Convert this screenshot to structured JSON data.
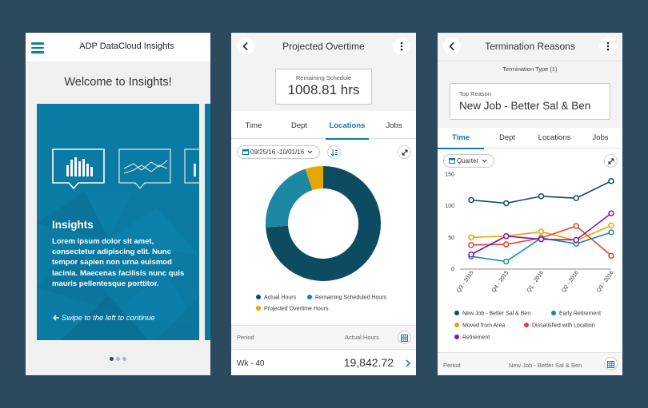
{
  "colors": {
    "background": "#2b4a5e",
    "brand": "#0b7ba4",
    "dark_teal": "#0d4b61",
    "mid_teal": "#1b87a3",
    "amber": "#e8a400",
    "red": "#e0442e",
    "purple": "#7d17b5"
  },
  "screen1": {
    "header": {
      "menu_icon": "hamburger-icon",
      "title": "ADP DataCloud Insights"
    },
    "welcome": "Welcome to Insights!",
    "card": {
      "icons": [
        "bar-chart-icon",
        "line-chart-icon",
        "bar-chart-icon"
      ],
      "title": "Insights",
      "body": "Lorem ipsum dolor sit amet, consectetur adipiscing elit. Nunc tempor sapien non urna euismod lacinia. Maecenas facilisis nunc quis mauris pellentesque porttitor.",
      "swipe_icon": "arrow-left-icon",
      "swipe": "Swipe to the left to continue"
    },
    "pager": {
      "count": 3,
      "active": 0
    }
  },
  "screen2": {
    "header": {
      "back_icon": "chevron-left-icon",
      "title": "Projected Overtime",
      "more_icon": "more-vertical-icon"
    },
    "summary": {
      "label": "Remaining Schedule",
      "value": "1008.81 hrs"
    },
    "tabs": [
      {
        "label": "Time",
        "active": false
      },
      {
        "label": "Dept",
        "active": false
      },
      {
        "label": "Locations",
        "active": true
      },
      {
        "label": "Jobs",
        "active": false
      }
    ],
    "date_filter": {
      "icon": "calendar-icon",
      "label": "09/25/16 -10/01/16",
      "dropdown_icon": "chevron-down-icon"
    },
    "sort_icon": "sort-icon",
    "expand_icon": "expand-icon",
    "chart_data": {
      "type": "pie",
      "categories": [
        "Actual Hours",
        "Remaining Scheduled Hours",
        "Projected Overtime Hours"
      ],
      "values": [
        74,
        21,
        5
      ],
      "colors": [
        "#0d4b61",
        "#1b87a3",
        "#e8a400"
      ],
      "legend_position": "bottom"
    },
    "table": {
      "columns": [
        "Period",
        "Actual Hours"
      ],
      "grid_icon": "grid-icon",
      "rows": [
        {
          "period": "Wk - 40",
          "value": "19,842.72",
          "chevron": "chevron-right-icon"
        }
      ]
    }
  },
  "screen3": {
    "header": {
      "back_icon": "chevron-left-icon",
      "title": "Termination Reasons",
      "more_icon": "more-vertical-icon"
    },
    "subheader": "Termination Type (1)",
    "summary": {
      "label": "Top Reason",
      "value": "New Job - Better Sal & Ben"
    },
    "tabs": [
      {
        "label": "Time",
        "active": true
      },
      {
        "label": "Dept",
        "active": false
      },
      {
        "label": "Locations",
        "active": false
      },
      {
        "label": "Jobs",
        "active": false
      }
    ],
    "period_filter": {
      "icon": "calendar-icon",
      "label": "Quarter",
      "dropdown_icon": "chevron-down-icon"
    },
    "expand_icon": "expand-icon",
    "chart_data": {
      "type": "line",
      "x": [
        "Q3 - 2015",
        "Q4 - 2015",
        "Q1 - 2016",
        "Q2 - 2016",
        "Q3 - 2016"
      ],
      "ylim": [
        0,
        150
      ],
      "yticks": [
        0,
        50,
        100,
        150
      ],
      "grid": false,
      "legend_position": "bottom",
      "series": [
        {
          "name": "New Job - Better Sal & Ben",
          "color": "#0d4b61",
          "values": [
            109,
            104,
            115,
            112,
            139
          ]
        },
        {
          "name": "Early Retirement",
          "color": "#1b87a3",
          "values": [
            20,
            12,
            49,
            40,
            58
          ]
        },
        {
          "name": "Moved from Area",
          "color": "#e8a400",
          "values": [
            50,
            52,
            59,
            45,
            69
          ]
        },
        {
          "name": "Dissatisfied with Location",
          "color": "#e0442e",
          "values": [
            38,
            39,
            49,
            68,
            21
          ]
        },
        {
          "name": "Retirement",
          "color": "#7d17b5",
          "values": [
            23,
            52,
            47,
            46,
            88
          ]
        }
      ]
    },
    "footer": {
      "columns": [
        "Period",
        "New Job - Better Sal & Ben"
      ],
      "grid_icon": "grid-icon"
    }
  }
}
